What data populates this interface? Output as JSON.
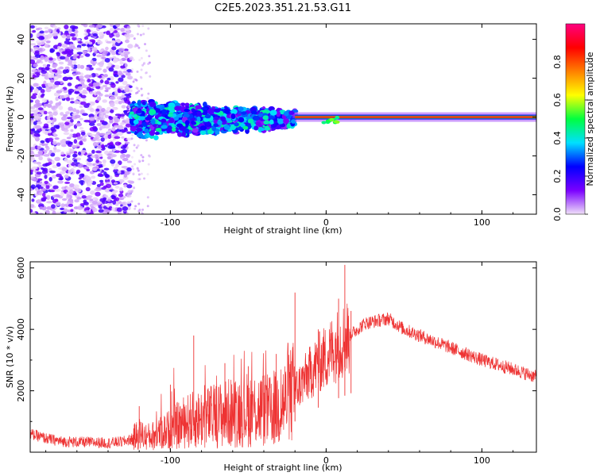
{
  "page_title": "C2E5.2023.351.21.53.G11",
  "chart_data": [
    {
      "type": "heatmap",
      "title": "C2E5.2023.351.21.53.G11",
      "xlabel": "Height of straight line (km)",
      "ylabel": "Frequency (Hz)",
      "xlim": [
        -190,
        135
      ],
      "ylim": [
        -50,
        48
      ],
      "x_ticks": [
        -100,
        0,
        100
      ],
      "x_tick_labels": [
        "-100",
        "0",
        "100"
      ],
      "y_ticks": [
        -40,
        -20,
        0,
        20,
        40
      ],
      "y_tick_labels": [
        "-40",
        "-20",
        "0",
        "20",
        "40"
      ],
      "colorbar": {
        "label": "Normalized spectral amplitude",
        "range": [
          0,
          1
        ],
        "ticks": [
          0.0,
          0.2,
          0.4,
          0.6,
          0.8
        ],
        "tick_labels": [
          "0.0",
          "0.2",
          "0.4",
          "0.6",
          "0.8"
        ],
        "colors": [
          "#f0e0f8",
          "#7a00ff",
          "#0000ff",
          "#00e0ff",
          "#00ff40",
          "#ffff00",
          "#ff8000",
          "#ff0000",
          "#ff0080"
        ]
      },
      "regions": [
        {
          "x_range": [
            -190,
            -125
          ],
          "freq_spread": 48,
          "amplitude": 0.15
        },
        {
          "x_range": [
            -125,
            -20
          ],
          "freq_spread": 10,
          "amplitude": 0.4
        },
        {
          "x_range": [
            -20,
            135
          ],
          "freq_spread": 2,
          "amplitude": 0.9
        }
      ]
    },
    {
      "type": "line",
      "xlabel": "Height of straight line (km)",
      "ylabel": "SNR (10 * v/v)",
      "xlim": [
        -190,
        135
      ],
      "ylim": [
        0,
        6200
      ],
      "x_ticks": [
        -100,
        0,
        100
      ],
      "x_tick_labels": [
        "-100",
        "0",
        "100"
      ],
      "y_ticks": [
        2000,
        4000,
        6000
      ],
      "y_tick_labels": [
        "2000",
        "4000",
        "6000"
      ],
      "color": "#ee3333",
      "series": [
        {
          "x": [
            -190,
            -180,
            -170,
            -160,
            -150,
            -140,
            -130,
            -125,
            -120,
            -115,
            -110,
            -100,
            -90,
            -80,
            -70,
            -60,
            -50,
            -40,
            -35,
            -30,
            -25,
            -20,
            -15,
            -10,
            -5,
            0,
            5,
            10,
            15,
            20,
            25,
            30,
            35,
            40,
            50,
            60,
            70,
            80,
            90,
            100,
            110,
            120,
            135
          ],
          "y": [
            600,
            450,
            350,
            330,
            320,
            300,
            350,
            420,
            600,
            500,
            550,
            750,
            1000,
            1100,
            1200,
            1300,
            1400,
            1400,
            1300,
            1500,
            1700,
            2000,
            2300,
            2600,
            2900,
            3100,
            3400,
            3600,
            3800,
            4000,
            4200,
            4250,
            4300,
            4350,
            4000,
            3800,
            3600,
            3400,
            3200,
            3000,
            2850,
            2700,
            2450
          ]
        }
      ],
      "spikes": [
        {
          "x": -120,
          "y": 1500
        },
        {
          "x": -100,
          "y": 2200
        },
        {
          "x": -85,
          "y": 3800
        },
        {
          "x": -65,
          "y": 2900
        },
        {
          "x": -50,
          "y": 2800
        },
        {
          "x": -32,
          "y": 3200
        },
        {
          "x": -20,
          "y": 5200
        },
        {
          "x": -5,
          "y": 4000
        },
        {
          "x": 8,
          "y": 5000
        },
        {
          "x": 12,
          "y": 6100
        },
        {
          "x": 16,
          "y": 4600
        }
      ]
    }
  ]
}
